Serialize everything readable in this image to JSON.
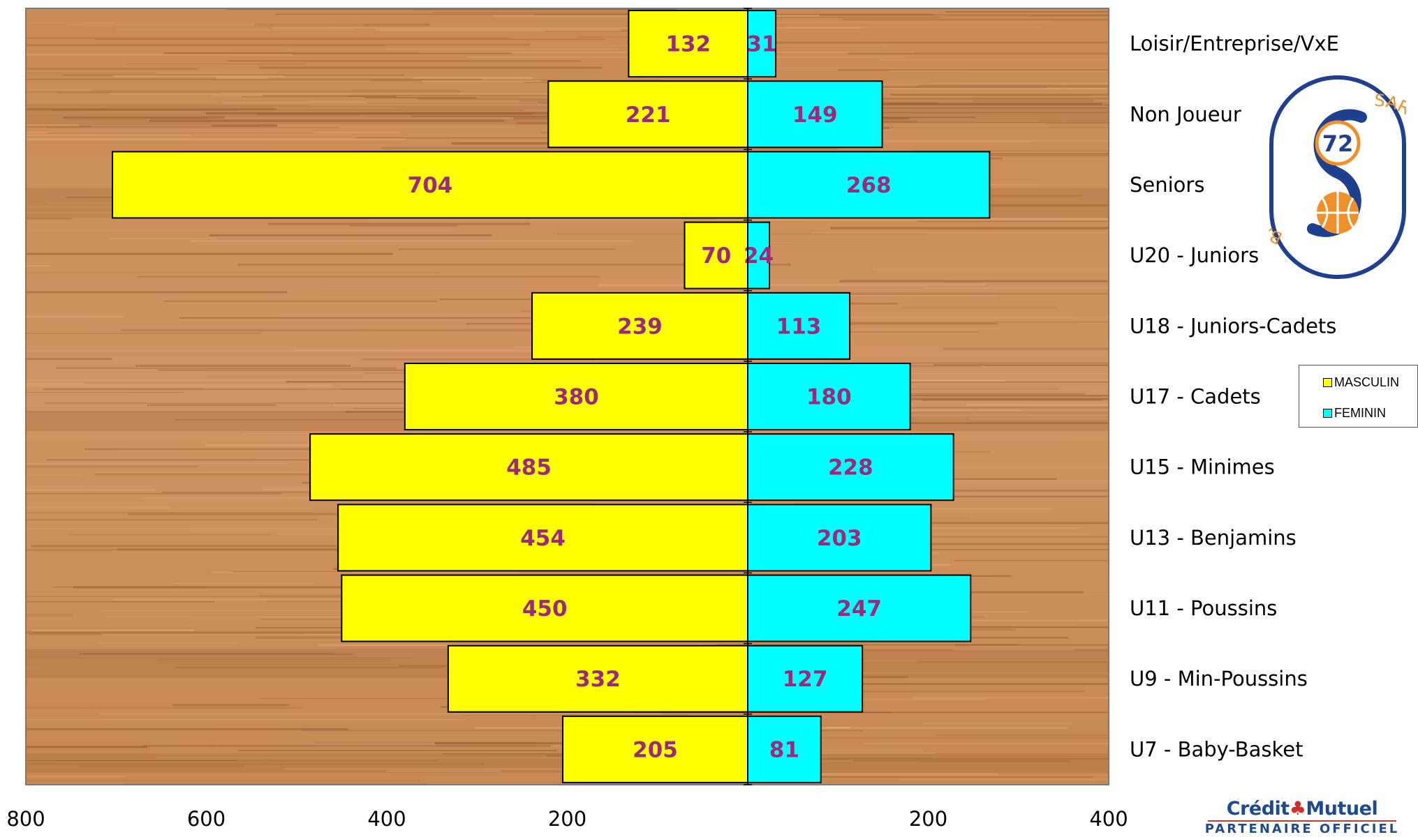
{
  "chart_data": {
    "type": "bar",
    "orientation": "horizontal-pyramid",
    "categories": [
      "Loisir/Entreprise/VxE",
      "Non Joueur",
      "Seniors",
      "U20 - Juniors",
      "U18 - Juniors-Cadets",
      "U17 - Cadets",
      "U15 - Minimes",
      "U13 - Benjamins",
      "U11 - Poussins",
      "U9 - Min-Poussins",
      "U7 - Baby-Basket"
    ],
    "series": [
      {
        "name": "MASCULIN",
        "color": "#ffff00",
        "side": "left",
        "values": [
          132,
          221,
          704,
          70,
          239,
          380,
          485,
          454,
          450,
          332,
          205
        ]
      },
      {
        "name": "FEMININ",
        "color": "#00ffff",
        "side": "right",
        "values": [
          31,
          149,
          268,
          24,
          113,
          180,
          228,
          203,
          247,
          127,
          81
        ]
      }
    ],
    "xlim_left": [
      0,
      800
    ],
    "xlim_right": [
      0,
      400
    ],
    "x_ticks": [
      "800",
      "600",
      "400",
      "200",
      "200",
      "400"
    ],
    "legend_position": "right",
    "background": "wood-texture",
    "label_color": "#9b2a7a"
  },
  "legend": {
    "items": [
      {
        "label": "MASCULIN",
        "color": "#ffff00"
      },
      {
        "label": "FEMININ",
        "color": "#00ffff"
      }
    ]
  },
  "logo": {
    "number": "72",
    "arc_left": "BASKET",
    "arc_right": "SARTHE",
    "color_primary": "#1f3f8f",
    "color_accent": "#f0902a"
  },
  "sponsor": {
    "name_left": "Crédit",
    "name_right": "Mutuel",
    "tagline": "PARTENAIRE OFFICIEL"
  }
}
